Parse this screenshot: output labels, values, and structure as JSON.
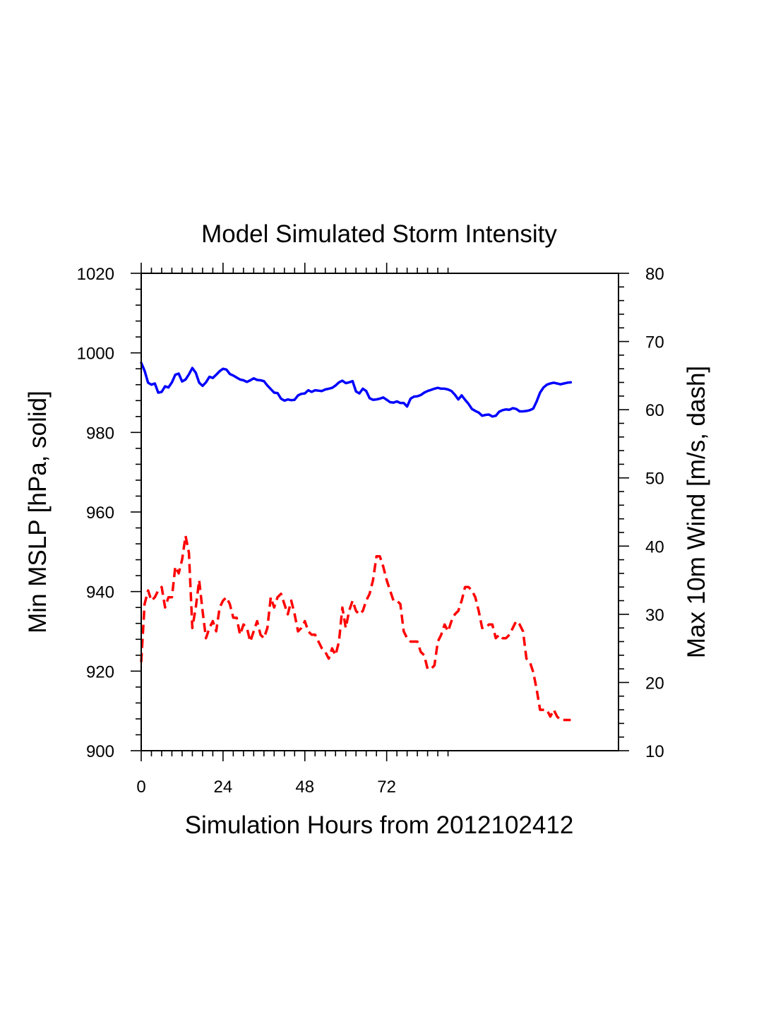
{
  "chart_data": {
    "type": "line",
    "title": "Model Simulated Storm Intensity",
    "xlabel": "Simulation Hours from 2012102412",
    "ylabel_left": "Min MSLP  [hPa, solid]",
    "ylabel_right": "Max 10m Wind  [m/s, dash]",
    "xlim": [
      0,
      140
    ],
    "ylim_left": [
      900,
      1020
    ],
    "ylim_right": [
      10,
      80
    ],
    "x_ticks": [
      0,
      24,
      48,
      72
    ],
    "y_ticks_left": [
      900,
      920,
      940,
      960,
      980,
      1000,
      1020
    ],
    "y_ticks_right": [
      10,
      20,
      30,
      40,
      50,
      60,
      70,
      80
    ],
    "grid": false,
    "legend": "none",
    "series": [
      {
        "axis": "left",
        "color": "#0000ff",
        "style": "solid",
        "x": [
          0,
          1,
          2,
          3,
          4,
          5,
          6,
          7,
          8,
          9,
          10,
          11,
          12,
          13,
          14,
          15,
          16,
          17,
          18,
          19,
          20,
          21,
          22,
          23,
          24,
          25,
          26,
          27,
          28,
          29,
          30,
          31,
          32,
          33,
          34,
          35,
          36,
          37,
          38,
          39,
          40,
          41,
          42,
          43,
          44,
          45,
          46,
          47,
          48,
          49,
          50,
          51,
          52,
          53,
          54,
          55,
          56,
          57,
          58,
          59,
          60,
          61,
          62,
          63,
          64,
          65,
          66,
          67,
          68,
          69,
          70,
          71,
          72,
          73,
          74,
          75,
          76,
          77,
          78,
          79,
          80,
          81,
          82,
          83,
          84,
          85,
          86,
          87,
          88,
          89,
          90,
          91,
          92,
          93,
          94,
          95,
          96,
          97,
          98,
          99,
          100,
          101,
          102,
          103,
          104,
          105,
          106,
          107,
          108,
          109,
          110,
          111,
          112,
          113,
          114,
          115,
          116,
          117,
          118,
          119,
          120,
          121,
          122,
          123,
          124,
          125,
          126
        ],
        "values": [
          997.5,
          995.5,
          992.5,
          992.0,
          992.3,
          990.0,
          990.2,
          991.6,
          991.3,
          992.6,
          994.5,
          994.8,
          992.8,
          993.3,
          994.6,
          996.2,
          995.0,
          992.5,
          991.7,
          992.6,
          994.0,
          993.7,
          994.5,
          995.4,
          996.0,
          995.8,
          994.7,
          994.3,
          993.8,
          993.3,
          993.1,
          992.7,
          993.1,
          993.6,
          993.2,
          993.1,
          992.9,
          991.8,
          990.9,
          990.0,
          989.9,
          988.5,
          988.0,
          988.3,
          988.1,
          988.2,
          989.3,
          989.7,
          989.8,
          990.6,
          990.2,
          990.6,
          990.5,
          990.4,
          990.8,
          991.0,
          991.2,
          991.8,
          992.6,
          993.0,
          992.4,
          992.6,
          992.9,
          990.3,
          989.8,
          991.0,
          990.4,
          988.6,
          988.2,
          988.3,
          988.5,
          988.8,
          988.2,
          987.6,
          987.5,
          987.8,
          987.4,
          987.4,
          986.5,
          988.5,
          989.0,
          989.1,
          989.4,
          990.0,
          990.4,
          990.7,
          991.0,
          991.2,
          991.0,
          991.0,
          990.8,
          990.4,
          989.5,
          988.3,
          989.3,
          988.2,
          987.2,
          985.9,
          985.4,
          985.0,
          984.2,
          984.4,
          984.5,
          984.0,
          984.2,
          985.2,
          985.6,
          985.8,
          985.7,
          986.1,
          985.9,
          985.3,
          985.3,
          985.4,
          985.6,
          986.0,
          987.8,
          990.0,
          991.3,
          992.0,
          992.3,
          992.5,
          992.3,
          992.1,
          992.3,
          992.5,
          992.6
        ]
      },
      {
        "axis": "right",
        "color": "#ff0000",
        "style": "dash",
        "x": [
          0,
          1,
          2,
          3,
          4,
          5,
          6,
          7,
          8,
          9,
          10,
          11,
          12,
          13,
          14,
          15,
          16,
          17,
          18,
          19,
          20,
          21,
          22,
          23,
          24,
          25,
          26,
          27,
          28,
          29,
          30,
          31,
          32,
          33,
          34,
          35,
          36,
          37,
          38,
          39,
          40,
          41,
          42,
          43,
          44,
          45,
          46,
          47,
          48,
          49,
          50,
          51,
          52,
          53,
          54,
          55,
          56,
          57,
          58,
          59,
          60,
          61,
          62,
          63,
          64,
          65,
          66,
          67,
          68,
          69,
          70,
          71,
          72,
          73,
          74,
          75,
          76,
          77,
          78,
          79,
          80,
          81,
          82,
          83,
          84,
          85,
          86,
          87,
          88,
          89,
          90,
          91,
          92,
          93,
          94,
          95,
          96,
          97,
          98,
          99,
          100,
          101,
          102,
          103,
          104,
          105,
          106,
          107,
          108,
          109,
          110,
          111,
          112,
          113,
          114,
          115,
          116,
          117,
          118,
          119,
          120,
          121,
          122,
          123,
          124,
          125,
          126
        ],
        "values": [
          23.0,
          31.5,
          33.5,
          32.0,
          32.5,
          33.5,
          34.0,
          31.0,
          32.5,
          32.5,
          37.0,
          36.0,
          38.0,
          41.5,
          39.0,
          28.0,
          31.0,
          35.0,
          30.5,
          26.5,
          28.0,
          29.0,
          27.5,
          31.0,
          32.0,
          32.5,
          31.5,
          29.5,
          29.5,
          27.0,
          28.5,
          28.0,
          26.0,
          27.5,
          29.0,
          27.0,
          26.5,
          28.0,
          32.5,
          31.0,
          32.5,
          33.0,
          31.5,
          30.0,
          32.0,
          30.0,
          27.5,
          28.0,
          29.0,
          27.5,
          27.0,
          27.0,
          26.0,
          25.0,
          24.5,
          23.5,
          25.0,
          24.0,
          26.0,
          31.0,
          28.0,
          30.5,
          32.0,
          30.5,
          30.0,
          30.5,
          32.0,
          33.0,
          35.0,
          38.5,
          38.5,
          37.0,
          35.0,
          33.5,
          32.0,
          32.0,
          31.5,
          27.5,
          26.5,
          26.0,
          26.0,
          26.0,
          24.5,
          24.0,
          22.0,
          22.0,
          22.5,
          26.0,
          27.0,
          28.5,
          27.5,
          29.0,
          30.0,
          30.5,
          32.0,
          34.0,
          34.0,
          33.5,
          32.5,
          30.5,
          28.0,
          28.0,
          28.5,
          28.5,
          26.5,
          27.0,
          26.5,
          26.5,
          27.0,
          28.0,
          29.0,
          28.5,
          27.5,
          23.5,
          23.0,
          21.5,
          19.0,
          16.0,
          16.0,
          16.0,
          15.0,
          16.0,
          15.0,
          14.5,
          14.5,
          14.5,
          14.5
        ]
      }
    ]
  }
}
